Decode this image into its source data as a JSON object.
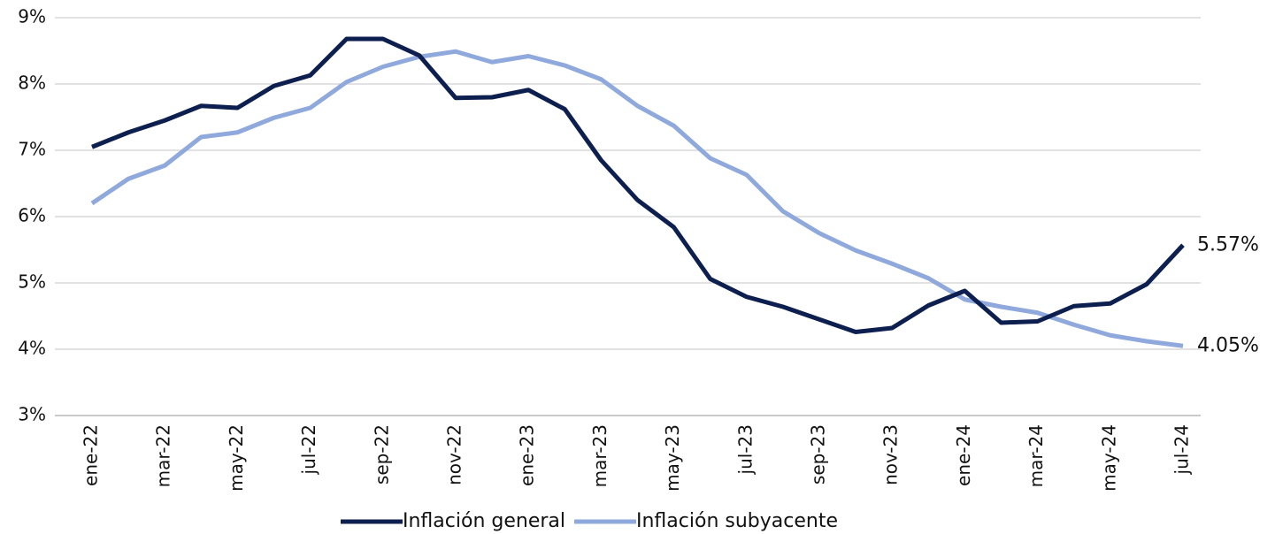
{
  "chart_data": {
    "type": "line",
    "categories": [
      "ene-22",
      null,
      "mar-22",
      null,
      "may-22",
      null,
      "jul-22",
      null,
      "sep-22",
      null,
      "nov-22",
      null,
      "ene-23",
      null,
      "mar-23",
      null,
      "may-23",
      null,
      "jul-23",
      null,
      "sep-23",
      null,
      "nov-23",
      null,
      "ene-24",
      null,
      "mar-24",
      null,
      "may-24",
      null,
      "jul-24"
    ],
    "series": [
      {
        "name": "Inflación general",
        "color": "#0d1f4f",
        "values": [
          7.05,
          7.27,
          7.45,
          7.67,
          7.64,
          7.97,
          8.13,
          8.68,
          8.68,
          8.43,
          7.79,
          7.8,
          7.91,
          7.62,
          6.85,
          6.25,
          5.84,
          5.06,
          4.79,
          4.64,
          4.45,
          4.26,
          4.32,
          4.66,
          4.88,
          4.4,
          4.42,
          4.65,
          4.69,
          4.98,
          5.57
        ],
        "value_labels": [
          null,
          null,
          null,
          null,
          null,
          null,
          null,
          null,
          null,
          null,
          null,
          null,
          null,
          null,
          null,
          null,
          null,
          null,
          null,
          null,
          null,
          null,
          null,
          null,
          null,
          null,
          null,
          null,
          null,
          null,
          "5.57%"
        ]
      },
      {
        "name": "Inflación subyacente",
        "color": "#8fa9dc",
        "values": [
          6.2,
          6.57,
          6.77,
          7.2,
          7.27,
          7.49,
          7.64,
          8.03,
          8.26,
          8.41,
          8.49,
          8.33,
          8.42,
          8.28,
          8.07,
          7.67,
          7.37,
          6.88,
          6.63,
          6.08,
          5.75,
          5.49,
          5.29,
          5.07,
          4.75,
          4.64,
          4.55,
          4.37,
          4.21,
          4.12,
          4.05
        ],
        "value_labels": [
          null,
          null,
          null,
          null,
          null,
          null,
          null,
          null,
          null,
          null,
          null,
          null,
          null,
          null,
          null,
          null,
          null,
          null,
          null,
          null,
          null,
          null,
          null,
          null,
          null,
          null,
          null,
          null,
          null,
          null,
          "4.05%"
        ]
      }
    ],
    "ylim": [
      3,
      9
    ],
    "yticks": [
      {
        "value": 3,
        "label": "3%"
      },
      {
        "value": 4,
        "label": "4%"
      },
      {
        "value": 5,
        "label": "5%"
      },
      {
        "value": 6,
        "label": "6%"
      },
      {
        "value": 7,
        "label": "7%"
      },
      {
        "value": 8,
        "label": "8%"
      },
      {
        "value": 9,
        "label": "9%"
      }
    ],
    "grid": true,
    "legend": "bottom"
  }
}
